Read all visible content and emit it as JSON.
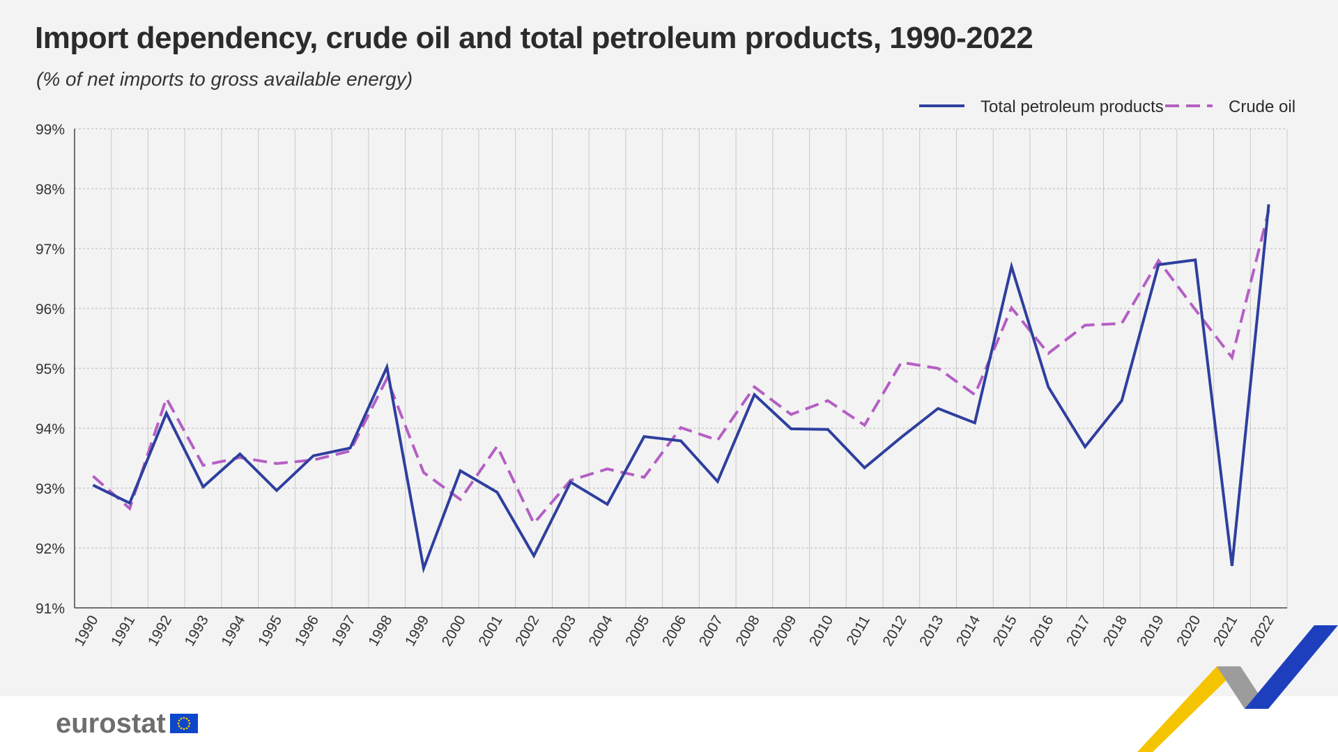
{
  "chart_data": {
    "type": "line",
    "title": "Import dependency, crude oil and total petroleum products, 1990-2022",
    "subtitle": "(% of net imports to gross available energy)",
    "xlabel": "",
    "ylabel": "",
    "ylim": [
      91,
      99
    ],
    "yticks": [
      "91%",
      "92%",
      "93%",
      "94%",
      "95%",
      "96%",
      "97%",
      "98%",
      "99%"
    ],
    "ytick_values": [
      91,
      92,
      93,
      94,
      95,
      96,
      97,
      98,
      99
    ],
    "grid": true,
    "legend_position": "top-right",
    "categories": [
      "1990",
      "1991",
      "1992",
      "1993",
      "1994",
      "1995",
      "1996",
      "1997",
      "1998",
      "1999",
      "2000",
      "2001",
      "2002",
      "2003",
      "2004",
      "2005",
      "2006",
      "2007",
      "2008",
      "2009",
      "2010",
      "2011",
      "2012",
      "2013",
      "2014",
      "2015",
      "2016",
      "2017",
      "2018",
      "2019",
      "2020",
      "2021",
      "2022"
    ],
    "series": [
      {
        "name": "Total petroleum products",
        "color": "#2e3f9e",
        "dash": "solid",
        "values": [
          93.05,
          92.75,
          94.25,
          93.02,
          93.57,
          92.96,
          93.54,
          93.67,
          95.02,
          91.66,
          93.29,
          92.93,
          91.87,
          93.1,
          92.73,
          93.86,
          93.79,
          93.11,
          94.56,
          93.99,
          93.98,
          93.34,
          93.85,
          94.33,
          94.09,
          96.7,
          94.69,
          93.69,
          94.46,
          96.73,
          96.81,
          91.7,
          97.74
        ]
      },
      {
        "name": "Crude oil",
        "color": "#b45fc4",
        "dash": "dashed",
        "values": [
          93.2,
          92.66,
          94.5,
          93.38,
          93.51,
          93.41,
          93.47,
          93.62,
          94.83,
          93.26,
          92.81,
          93.7,
          92.41,
          93.13,
          93.32,
          93.18,
          94.01,
          93.8,
          94.69,
          94.23,
          94.46,
          94.05,
          95.1,
          95.0,
          94.56,
          96.01,
          95.25,
          95.72,
          95.75,
          96.8,
          95.98,
          95.18,
          97.64
        ]
      }
    ]
  },
  "brand": {
    "logo_text": "eurostat"
  },
  "colors": {
    "background": "#f3f3f3",
    "grid": "#bdbdbd",
    "axis": "#444444",
    "total_petroleum": "#2e3f9e",
    "crude_oil": "#b45fc4",
    "eu_flag": "#0e47cb",
    "deco_yellow": "#f5c400",
    "deco_grey": "#9c9c9c",
    "deco_blue": "#1e3fbd"
  }
}
